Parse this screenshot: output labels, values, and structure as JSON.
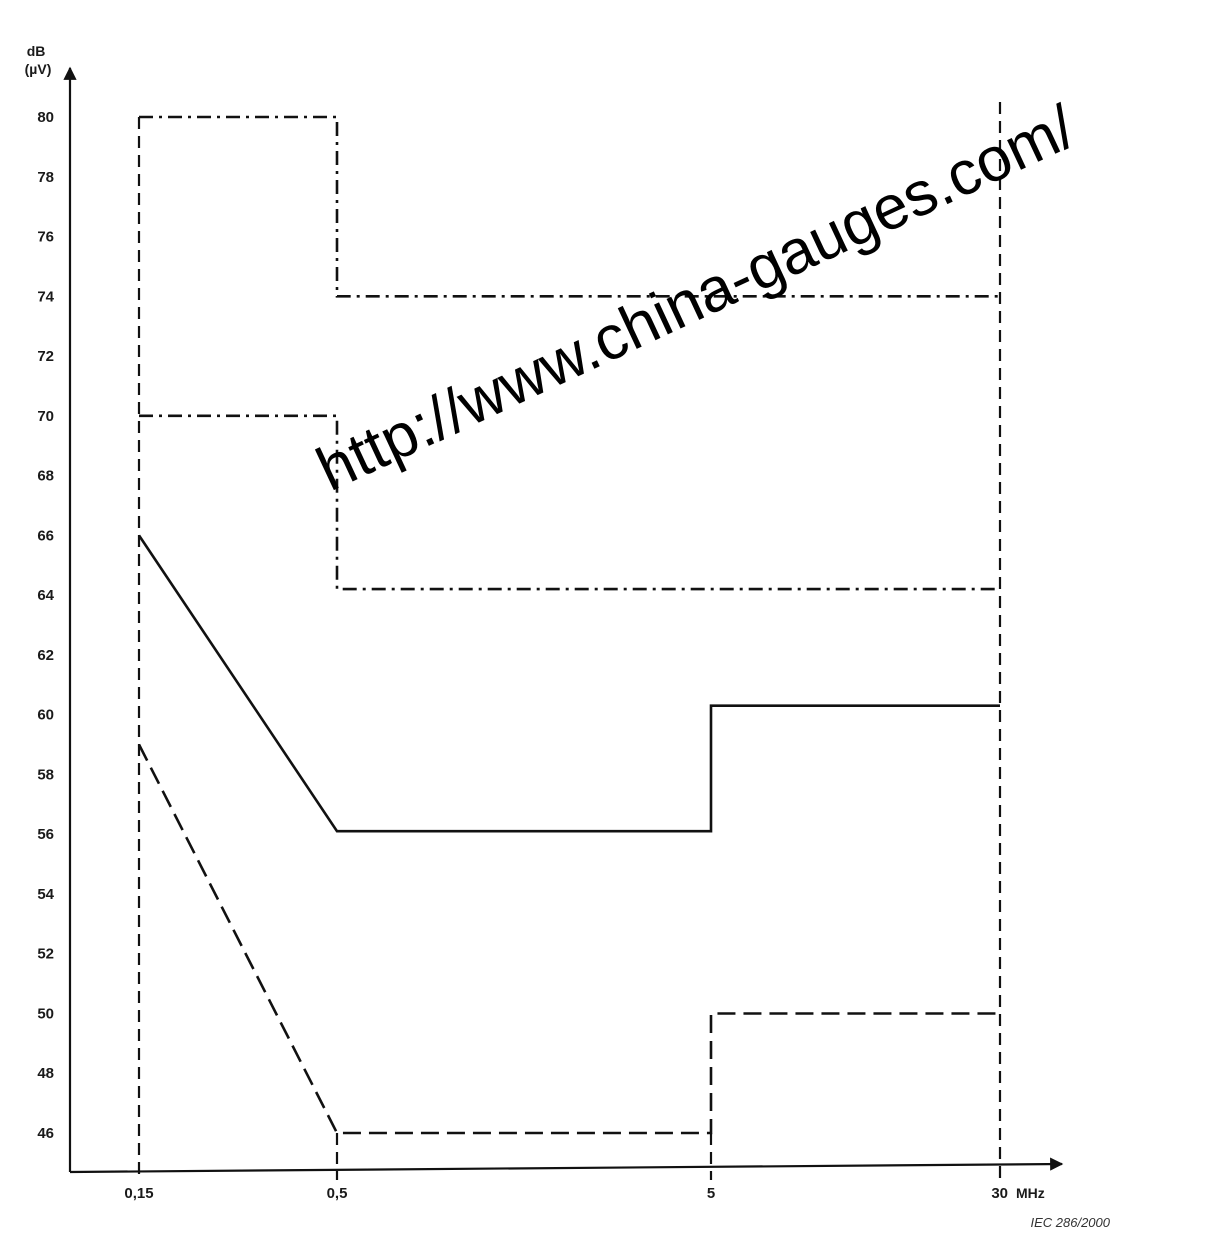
{
  "chart_data": {
    "type": "line",
    "x_scale": "log",
    "ylabel": "dB\n(µV)",
    "xunit": "MHz",
    "ylim": [
      44,
      82
    ],
    "xlim": [
      0.1,
      40
    ],
    "y_ticks": [
      80,
      78,
      76,
      74,
      72,
      70,
      68,
      66,
      64,
      62,
      60,
      58,
      56,
      54,
      52,
      50,
      48,
      46
    ],
    "x_ticks": [
      {
        "value": 0.15,
        "label": "0,15"
      },
      {
        "value": 0.5,
        "label": "0,5"
      },
      {
        "value": 5,
        "label": "5"
      },
      {
        "value": 30,
        "label": "30"
      }
    ],
    "series": [
      {
        "style": "dash-dot",
        "points": [
          [
            0.15,
            80
          ],
          [
            0.5,
            80
          ],
          [
            0.5,
            74
          ],
          [
            30,
            74
          ]
        ]
      },
      {
        "style": "dash-dot",
        "points": [
          [
            0.15,
            70
          ],
          [
            0.5,
            70
          ],
          [
            0.5,
            64.2
          ],
          [
            30,
            64.2
          ]
        ]
      },
      {
        "style": "solid",
        "points": [
          [
            0.15,
            66
          ],
          [
            0.5,
            56.1
          ],
          [
            5,
            56.1
          ],
          [
            5,
            60.3
          ],
          [
            30,
            60.3
          ]
        ]
      },
      {
        "style": "dashed",
        "points": [
          [
            0.15,
            59
          ],
          [
            0.5,
            46
          ],
          [
            5,
            46
          ],
          [
            5,
            50
          ],
          [
            30,
            50
          ]
        ]
      }
    ],
    "grid": false,
    "legend": "none"
  },
  "reference": "IEC  286/2000",
  "watermark": "http://www.china-gauges.com/"
}
